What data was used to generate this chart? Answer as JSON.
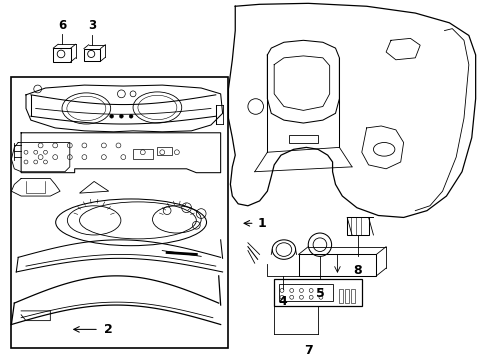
{
  "background_color": "#ffffff",
  "figsize": [
    4.89,
    3.6
  ],
  "dpi": 100
}
